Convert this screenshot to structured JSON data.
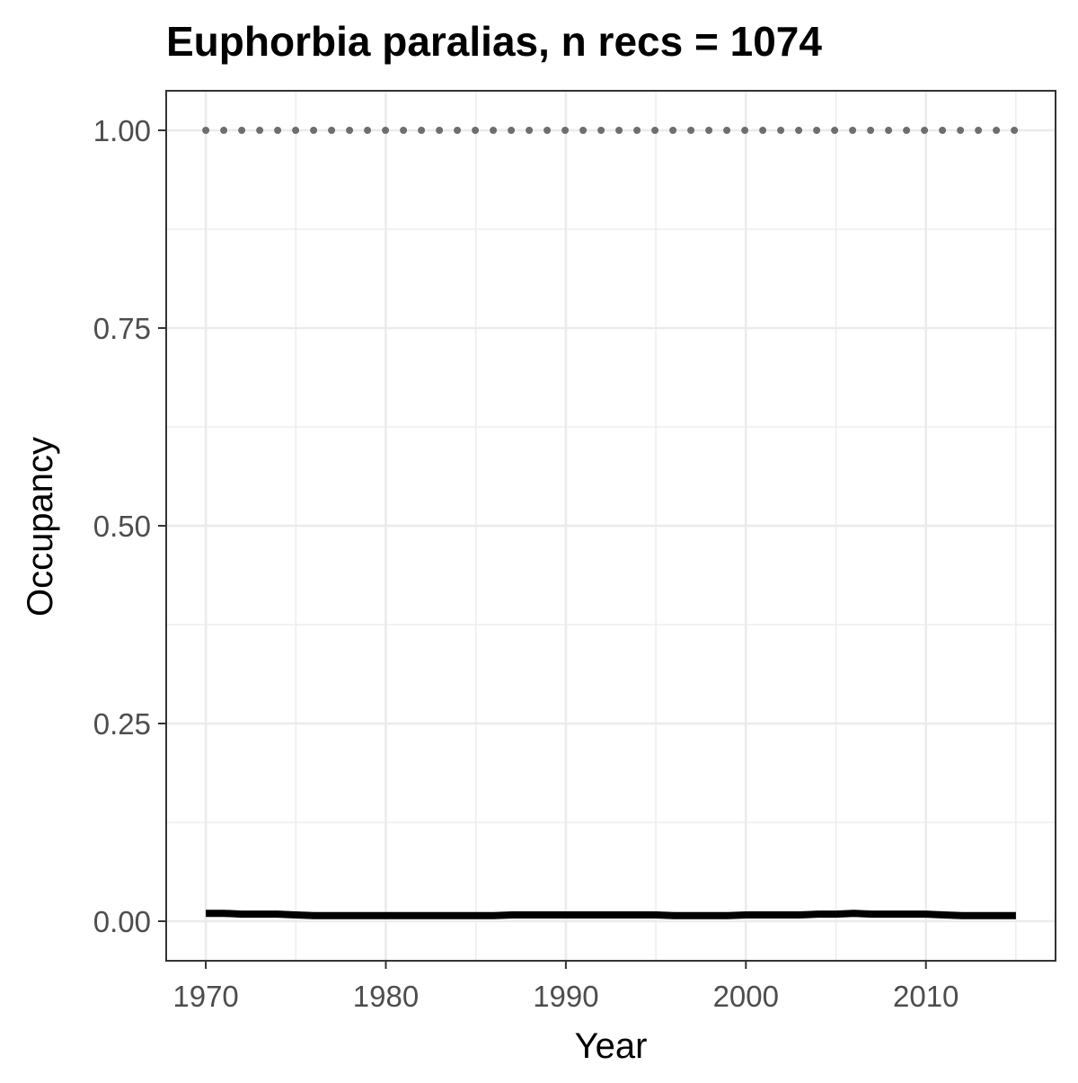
{
  "chart_data": {
    "type": "line",
    "title": "Euphorbia paralias, n recs = 1074",
    "xlabel": "Year",
    "ylabel": "Occupancy",
    "xlim": [
      1967.8,
      2017.2
    ],
    "ylim": [
      -0.05,
      1.05
    ],
    "x_ticks": [
      1970,
      1980,
      1990,
      2000,
      2010
    ],
    "x_tick_labels": [
      "1970",
      "1980",
      "1990",
      "2000",
      "2010"
    ],
    "x_minor_ticks": [
      1975,
      1985,
      1995,
      2005,
      2015
    ],
    "y_ticks": [
      0,
      0.25,
      0.5,
      0.75,
      1
    ],
    "y_tick_labels": [
      "0.00",
      "0.25",
      "0.50",
      "0.75",
      "1.00"
    ],
    "y_minor_ticks": [
      0.125,
      0.375,
      0.625,
      0.875
    ],
    "grid": true,
    "series": [
      {
        "style": "solid",
        "color": "#000000",
        "x": [
          1970,
          1971,
          1972,
          1973,
          1974,
          1975,
          1976,
          1977,
          1978,
          1979,
          1980,
          1981,
          1982,
          1983,
          1984,
          1985,
          1986,
          1987,
          1988,
          1989,
          1990,
          1991,
          1992,
          1993,
          1994,
          1995,
          1996,
          1997,
          1998,
          1999,
          2000,
          2001,
          2002,
          2003,
          2004,
          2005,
          2006,
          2007,
          2008,
          2009,
          2010,
          2011,
          2012,
          2013,
          2014,
          2015
        ],
        "values": [
          0.01,
          0.01,
          0.009,
          0.009,
          0.009,
          0.008,
          0.007,
          0.007,
          0.007,
          0.007,
          0.007,
          0.007,
          0.007,
          0.007,
          0.007,
          0.007,
          0.007,
          0.008,
          0.008,
          0.008,
          0.008,
          0.008,
          0.008,
          0.008,
          0.008,
          0.008,
          0.007,
          0.007,
          0.007,
          0.007,
          0.008,
          0.008,
          0.008,
          0.008,
          0.009,
          0.009,
          0.01,
          0.009,
          0.009,
          0.009,
          0.009,
          0.008,
          0.007,
          0.007,
          0.007,
          0.007
        ]
      },
      {
        "style": "dotted",
        "color": "#6e6e6e",
        "x": [
          1970,
          1971,
          1972,
          1973,
          1974,
          1975,
          1976,
          1977,
          1978,
          1979,
          1980,
          1981,
          1982,
          1983,
          1984,
          1985,
          1986,
          1987,
          1988,
          1989,
          1990,
          1991,
          1992,
          1993,
          1994,
          1995,
          1996,
          1997,
          1998,
          1999,
          2000,
          2001,
          2002,
          2003,
          2004,
          2005,
          2006,
          2007,
          2008,
          2009,
          2010,
          2011,
          2012,
          2013,
          2014,
          2015
        ],
        "values": [
          1,
          1,
          1,
          1,
          1,
          1,
          1,
          1,
          1,
          1,
          1,
          1,
          1,
          1,
          1,
          1,
          1,
          1,
          1,
          1,
          1,
          1,
          1,
          1,
          1,
          1,
          1,
          1,
          1,
          1,
          1,
          1,
          1,
          1,
          1,
          1,
          1,
          1,
          1,
          1,
          1,
          1,
          1,
          1,
          1,
          1
        ]
      }
    ]
  }
}
